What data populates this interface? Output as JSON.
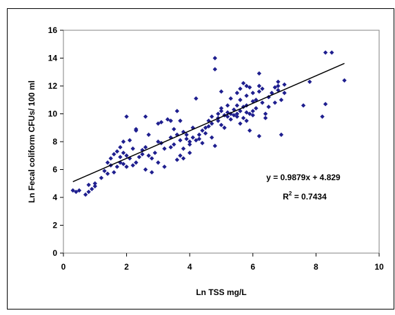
{
  "chart_data": {
    "type": "scatter",
    "xlabel": "Ln TSS mg/L",
    "ylabel": "Ln Fecal coliform CFUs/ 100 ml",
    "xlim": [
      0,
      10
    ],
    "ylim": [
      0,
      16
    ],
    "x_ticks": [
      0,
      2,
      4,
      6,
      8,
      10
    ],
    "y_ticks": [
      0,
      2,
      4,
      6,
      8,
      10,
      12,
      14,
      16
    ],
    "grid": false,
    "legend": "none",
    "marker_color": "#1f1f8f",
    "trendline": {
      "type": "linear",
      "slope": 0.9879,
      "intercept": 4.829,
      "x_range": [
        0.3,
        8.9
      ],
      "color": "#000000"
    },
    "annotations": {
      "equation": "y = 0.9879x + 4.829",
      "r2_prefix": "R",
      "r2_sup": "2",
      "r2_value": " = 0.7434"
    },
    "points": [
      [
        0.3,
        4.5
      ],
      [
        0.4,
        4.4
      ],
      [
        0.5,
        4.5
      ],
      [
        0.7,
        4.2
      ],
      [
        0.8,
        4.4
      ],
      [
        0.8,
        4.9
      ],
      [
        0.9,
        4.6
      ],
      [
        1.0,
        4.8
      ],
      [
        1.0,
        5.0
      ],
      [
        1.2,
        5.4
      ],
      [
        1.3,
        5.9
      ],
      [
        1.4,
        5.7
      ],
      [
        1.4,
        6.5
      ],
      [
        1.5,
        6.8
      ],
      [
        1.5,
        6.3
      ],
      [
        1.6,
        5.8
      ],
      [
        1.6,
        7.1
      ],
      [
        1.7,
        6.2
      ],
      [
        1.7,
        7.3
      ],
      [
        1.8,
        6.5
      ],
      [
        1.8,
        6.9
      ],
      [
        1.8,
        7.6
      ],
      [
        1.9,
        6.4
      ],
      [
        1.9,
        7.2
      ],
      [
        1.9,
        8.0
      ],
      [
        2.0,
        6.2
      ],
      [
        2.0,
        9.8
      ],
      [
        2.0,
        7.0
      ],
      [
        2.1,
        6.8
      ],
      [
        2.1,
        8.1
      ],
      [
        2.2,
        6.3
      ],
      [
        2.2,
        7.5
      ],
      [
        2.3,
        6.5
      ],
      [
        2.3,
        8.8
      ],
      [
        2.3,
        8.9
      ],
      [
        2.4,
        6.9
      ],
      [
        2.5,
        7.4
      ],
      [
        2.5,
        7.1
      ],
      [
        2.6,
        7.6
      ],
      [
        2.6,
        6.0
      ],
      [
        2.7,
        7.0
      ],
      [
        2.7,
        8.5
      ],
      [
        2.6,
        9.8
      ],
      [
        2.8,
        5.8
      ],
      [
        2.8,
        6.8
      ],
      [
        2.9,
        7.2
      ],
      [
        3.0,
        6.5
      ],
      [
        3.0,
        8.0
      ],
      [
        3.0,
        9.3
      ],
      [
        3.1,
        9.4
      ],
      [
        3.1,
        7.9
      ],
      [
        3.2,
        6.2
      ],
      [
        3.2,
        7.5
      ],
      [
        3.3,
        9.6
      ],
      [
        3.4,
        7.6
      ],
      [
        3.4,
        9.5
      ],
      [
        3.4,
        8.3
      ],
      [
        3.5,
        7.8
      ],
      [
        3.5,
        8.9
      ],
      [
        3.6,
        6.7
      ],
      [
        3.6,
        8.5
      ],
      [
        3.6,
        10.2
      ],
      [
        3.7,
        7.0
      ],
      [
        3.7,
        8.1
      ],
      [
        3.7,
        9.5
      ],
      [
        3.8,
        6.8
      ],
      [
        3.8,
        7.5
      ],
      [
        3.8,
        8.7
      ],
      [
        3.9,
        8.2
      ],
      [
        3.9,
        8.5
      ],
      [
        4.0,
        7.8
      ],
      [
        4.0,
        7.2
      ],
      [
        4.0,
        8.0
      ],
      [
        4.1,
        8.3
      ],
      [
        4.1,
        9.0
      ],
      [
        4.2,
        8.1
      ],
      [
        4.2,
        11.1
      ],
      [
        4.3,
        8.5
      ],
      [
        4.3,
        8.2
      ],
      [
        4.4,
        8.8
      ],
      [
        4.4,
        7.9
      ],
      [
        4.5,
        9.0
      ],
      [
        4.5,
        8.6
      ],
      [
        4.6,
        9.1
      ],
      [
        4.6,
        9.5
      ],
      [
        4.7,
        9.3
      ],
      [
        4.7,
        8.3
      ],
      [
        4.7,
        9.8
      ],
      [
        4.8,
        7.7
      ],
      [
        4.8,
        14.0
      ],
      [
        4.8,
        13.2
      ],
      [
        4.9,
        10.0
      ],
      [
        4.9,
        9.5
      ],
      [
        5.0,
        10.2
      ],
      [
        5.0,
        9.2
      ],
      [
        5.0,
        10.4
      ],
      [
        5.0,
        11.6
      ],
      [
        5.1,
        9.9
      ],
      [
        5.1,
        9.0
      ],
      [
        5.2,
        10.1
      ],
      [
        5.2,
        9.8
      ],
      [
        5.2,
        10.6
      ],
      [
        5.3,
        10.0
      ],
      [
        5.3,
        9.6
      ],
      [
        5.3,
        11.1
      ],
      [
        5.4,
        9.9
      ],
      [
        5.4,
        10.3
      ],
      [
        5.5,
        11.5
      ],
      [
        5.5,
        10.0
      ],
      [
        5.5,
        9.8
      ],
      [
        5.6,
        10.2
      ],
      [
        5.6,
        11.8
      ],
      [
        5.6,
        11.0
      ],
      [
        5.7,
        9.7
      ],
      [
        5.7,
        10.5
      ],
      [
        5.7,
        12.2
      ],
      [
        5.8,
        10.1
      ],
      [
        5.8,
        11.3
      ],
      [
        5.8,
        12.0
      ],
      [
        5.8,
        9.5
      ],
      [
        5.9,
        10.0
      ],
      [
        5.9,
        11.9
      ],
      [
        5.9,
        8.8
      ],
      [
        6.0,
        10.2
      ],
      [
        6.0,
        11.5
      ],
      [
        6.0,
        9.9
      ],
      [
        6.1,
        10.4
      ],
      [
        6.1,
        11.0
      ],
      [
        6.2,
        12.9
      ],
      [
        6.2,
        12.0
      ],
      [
        6.2,
        11.6
      ],
      [
        6.2,
        8.4
      ],
      [
        6.3,
        10.8
      ],
      [
        6.3,
        11.8
      ],
      [
        6.4,
        10.0
      ],
      [
        6.4,
        9.7
      ],
      [
        6.5,
        11.2
      ],
      [
        6.5,
        10.5
      ],
      [
        6.6,
        11.5
      ],
      [
        6.7,
        11.9
      ],
      [
        6.7,
        10.8
      ],
      [
        6.8,
        12.0
      ],
      [
        6.8,
        11.7
      ],
      [
        6.8,
        12.3
      ],
      [
        6.9,
        11.0
      ],
      [
        6.9,
        8.5
      ],
      [
        7.0,
        12.1
      ],
      [
        7.0,
        11.5
      ],
      [
        7.6,
        10.6
      ],
      [
        7.8,
        12.3
      ],
      [
        8.2,
        9.8
      ],
      [
        8.3,
        10.7
      ],
      [
        8.3,
        14.4
      ],
      [
        8.5,
        14.4
      ],
      [
        8.9,
        12.4
      ],
      [
        5.5,
        10.6
      ],
      [
        5.6,
        9.3
      ],
      [
        4.9,
        9.7
      ],
      [
        5.8,
        10.6
      ],
      [
        6.0,
        10.9
      ]
    ]
  }
}
